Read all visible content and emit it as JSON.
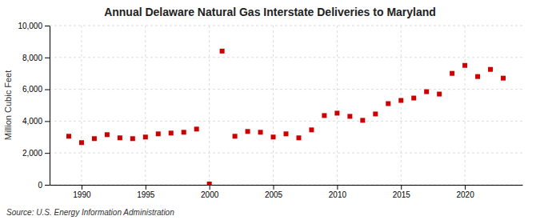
{
  "chart_data": {
    "type": "scatter",
    "title": "Annual Delaware Natural Gas Interstate Deliveries to Maryland",
    "ylabel": "Million Cubic Feet",
    "source": "Source: U.S. Energy Information Administration",
    "color": "#cc0000",
    "marker": "square",
    "grid": true,
    "xlim": [
      1987.5,
      2024.5
    ],
    "ylim": [
      0,
      10000
    ],
    "xticks": [
      1990,
      1995,
      2000,
      2005,
      2010,
      2015,
      2020
    ],
    "yticks": [
      0,
      {
        "value": 2000,
        "label": "2,000"
      },
      {
        "value": 4000,
        "label": "4,000"
      },
      {
        "value": 6000,
        "label": "6,000"
      },
      {
        "value": 8000,
        "label": "8,000"
      },
      {
        "value": 10000,
        "label": "10,000"
      }
    ],
    "x": [
      1989,
      1990,
      1991,
      1992,
      1993,
      1994,
      1995,
      1996,
      1997,
      1998,
      1999,
      2000,
      2001,
      2002,
      2003,
      2004,
      2005,
      2006,
      2007,
      2008,
      2009,
      2010,
      2011,
      2012,
      2013,
      2014,
      2015,
      2016,
      2017,
      2018,
      2019,
      2020,
      2021,
      2022,
      2023
    ],
    "values": [
      3050,
      2650,
      2900,
      3150,
      2950,
      2900,
      3000,
      3200,
      3250,
      3300,
      3500,
      50,
      8400,
      3050,
      3350,
      3300,
      3000,
      3200,
      2950,
      3450,
      4350,
      4500,
      4300,
      4050,
      4450,
      5100,
      5300,
      5450,
      5850,
      5700,
      7000,
      7500,
      6800,
      7250,
      6700
    ]
  }
}
